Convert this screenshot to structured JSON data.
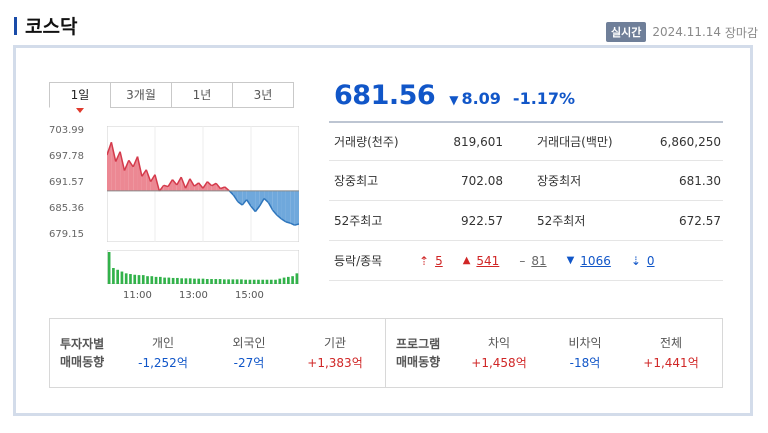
{
  "header": {
    "title": "코스닥",
    "live_badge": "실시간",
    "date": "2024.11.14",
    "market_status": "장마감"
  },
  "tabs": [
    {
      "label": "1일",
      "active": true
    },
    {
      "label": "3개월"
    },
    {
      "label": "1년"
    },
    {
      "label": "3년"
    }
  ],
  "chart_data": {
    "type": "area",
    "y_ticks": [
      "703.99",
      "697.78",
      "691.57",
      "685.36",
      "679.15"
    ],
    "x_ticks": [
      "11:00",
      "13:00",
      "15:00"
    ],
    "baseline": 689.64,
    "ylim": [
      679.15,
      703.99
    ],
    "values": [
      698.4,
      701.5,
      696.8,
      699.2,
      694.6,
      697.1,
      695.5,
      698.0,
      693.2,
      694.8,
      691.9,
      693.6,
      689.6,
      691.0,
      690.7,
      692.4,
      691.1,
      693.0,
      690.3,
      692.6,
      690.8,
      691.6,
      690.3,
      691.9,
      690.9,
      691.5,
      690.2,
      690.6,
      689.7,
      688.6,
      687.0,
      686.2,
      687.5,
      685.9,
      684.6,
      686.0,
      687.8,
      686.8,
      684.9,
      683.7,
      682.8,
      682.1,
      681.8,
      681.3,
      681.6
    ],
    "volumes": [
      0.9,
      0.45,
      0.4,
      0.35,
      0.3,
      0.28,
      0.26,
      0.25,
      0.25,
      0.22,
      0.22,
      0.2,
      0.2,
      0.18,
      0.18,
      0.17,
      0.17,
      0.16,
      0.16,
      0.16,
      0.15,
      0.15,
      0.15,
      0.14,
      0.14,
      0.14,
      0.14,
      0.13,
      0.13,
      0.13,
      0.13,
      0.13,
      0.12,
      0.12,
      0.12,
      0.12,
      0.12,
      0.12,
      0.12,
      0.12,
      0.15,
      0.18,
      0.2,
      0.22,
      0.3
    ],
    "colors": {
      "up": "#ec8893",
      "up_line": "#d43a4b",
      "down": "#6fa8dc",
      "down_line": "#2f76bc",
      "volume": "#32b24a"
    }
  },
  "quote": {
    "price": "681.56",
    "change_arrow": "▼",
    "change": "8.09",
    "change_rate": "-1.17%"
  },
  "stats": {
    "volume_label": "거래량(천주)",
    "volume": "819,601",
    "value_label": "거래대금(백만)",
    "value": "6,860,250",
    "high_label": "장중최고",
    "high": "702.08",
    "low_label": "장중최저",
    "low": "681.30",
    "w52_high_label": "52주최고",
    "w52_high": "922.57",
    "w52_low_label": "52주최저",
    "w52_low": "672.57",
    "updown_label": "등락/종목",
    "upper_limit": "5",
    "rise": "541",
    "flat": "81",
    "fall": "1066",
    "lower_limit": "0"
  },
  "investors": {
    "title_line1": "투자자별",
    "title_line2": "매매동향",
    "items": [
      {
        "name": "개인",
        "value": "-1,252",
        "unit": "억"
      },
      {
        "name": "외국인",
        "value": "-27",
        "unit": "억"
      },
      {
        "name": "기관",
        "value": "+1,383",
        "unit": "억"
      }
    ]
  },
  "program": {
    "title_line1": "프로그램",
    "title_line2": "매매동향",
    "items": [
      {
        "name": "차익",
        "value": "+1,458",
        "unit": "억"
      },
      {
        "name": "비차익",
        "value": "-18",
        "unit": "억"
      },
      {
        "name": "전체",
        "value": "+1,441",
        "unit": "억"
      }
    ]
  }
}
